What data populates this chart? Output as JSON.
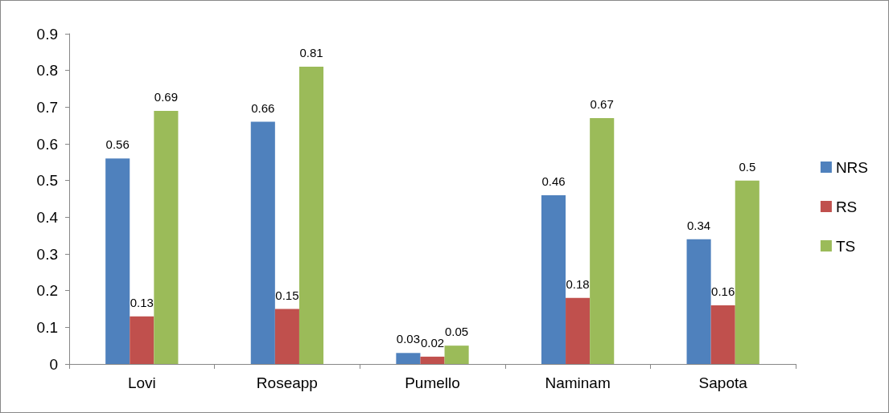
{
  "chart_data": {
    "type": "bar",
    "categories": [
      "Lovi",
      "Roseapp",
      "Pumello",
      "Naminam",
      "Sapota"
    ],
    "series": [
      {
        "name": "NRS",
        "color": "#4f81bd",
        "values": [
          0.56,
          0.66,
          0.03,
          0.46,
          0.34
        ]
      },
      {
        "name": "RS",
        "color": "#c0504d",
        "values": [
          0.13,
          0.15,
          0.02,
          0.18,
          0.16
        ]
      },
      {
        "name": "TS",
        "color": "#9bbb59",
        "values": [
          0.69,
          0.81,
          0.05,
          0.67,
          0.5
        ]
      }
    ],
    "ylim": [
      0,
      0.9
    ],
    "yticks": [
      0,
      0.1,
      0.2,
      0.3,
      0.4,
      0.5,
      0.6,
      0.7,
      0.8,
      0.9
    ],
    "grid": false,
    "legend": "right",
    "data_labels": true
  }
}
